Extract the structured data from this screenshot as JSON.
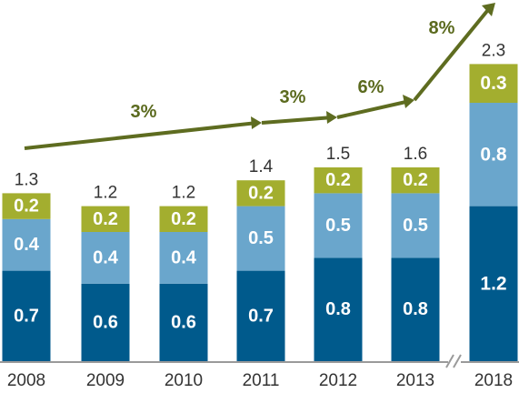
{
  "colors": {
    "segment_bottom": "#005a8c",
    "segment_middle": "#6aa6cc",
    "segment_top": "#a3ae2f",
    "arrow": "#5e6c20",
    "axis": "#9a9a9a"
  },
  "chart_data": {
    "type": "bar",
    "stacked": true,
    "categories": [
      "2008",
      "2009",
      "2010",
      "2011",
      "2012",
      "2013",
      "2018"
    ],
    "series": [
      {
        "values": [
          0.7,
          0.6,
          0.6,
          0.7,
          0.8,
          0.8,
          1.2
        ],
        "color": "#005a8c"
      },
      {
        "values": [
          0.4,
          0.4,
          0.4,
          0.5,
          0.5,
          0.5,
          0.8
        ],
        "color": "#6aa6cc"
      },
      {
        "values": [
          0.2,
          0.2,
          0.2,
          0.2,
          0.2,
          0.2,
          0.3
        ],
        "color": "#a3ae2f"
      }
    ],
    "totals": [
      "1.3",
      "1.2",
      "1.2",
      "1.4",
      "1.5",
      "1.6",
      "2.3"
    ],
    "growth_annotations": [
      "3%",
      "3%",
      "6%",
      "8%"
    ],
    "axis_break_between": [
      "2013",
      "2018"
    ],
    "title": "",
    "xlabel": "",
    "ylabel": "",
    "grid": false,
    "legend": "none"
  }
}
